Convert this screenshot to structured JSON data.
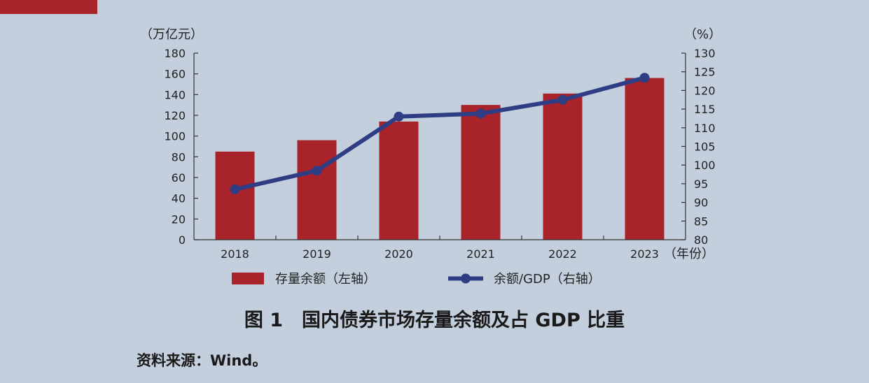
{
  "colors": {
    "background": "#c3cfdd",
    "accent": "#a8232a",
    "bar": "#a8232a",
    "line": "#2e3d84"
  },
  "caption": "图 1　国内债券市场存量余额及占 GDP 比重",
  "source": "资料来源：Wind。",
  "chart_data": {
    "type": "bar",
    "categories": [
      "2018",
      "2019",
      "2020",
      "2021",
      "2022",
      "2023"
    ],
    "x_unit": "（年份）",
    "series": [
      {
        "name": "存量余额（左轴）",
        "type": "bar",
        "axis": "left",
        "values": [
          85,
          96,
          114,
          130,
          141,
          156
        ]
      },
      {
        "name": "余额/GDP（右轴）",
        "type": "line",
        "axis": "right",
        "values": [
          93.5,
          98.5,
          113,
          113.8,
          117.5,
          123.4
        ]
      }
    ],
    "y_left": {
      "unit": "（万亿元）",
      "ylim": [
        0,
        180
      ],
      "ticks": [
        "0",
        "20",
        "40",
        "60",
        "80",
        "100",
        "120",
        "140",
        "160",
        "180"
      ]
    },
    "y_right": {
      "unit": "（%）",
      "ylim": [
        80,
        130
      ],
      "ticks": [
        "80",
        "85",
        "90",
        "95",
        "100",
        "105",
        "110",
        "115",
        "120",
        "125",
        "130"
      ]
    },
    "grid": false,
    "legend_position": "bottom"
  }
}
